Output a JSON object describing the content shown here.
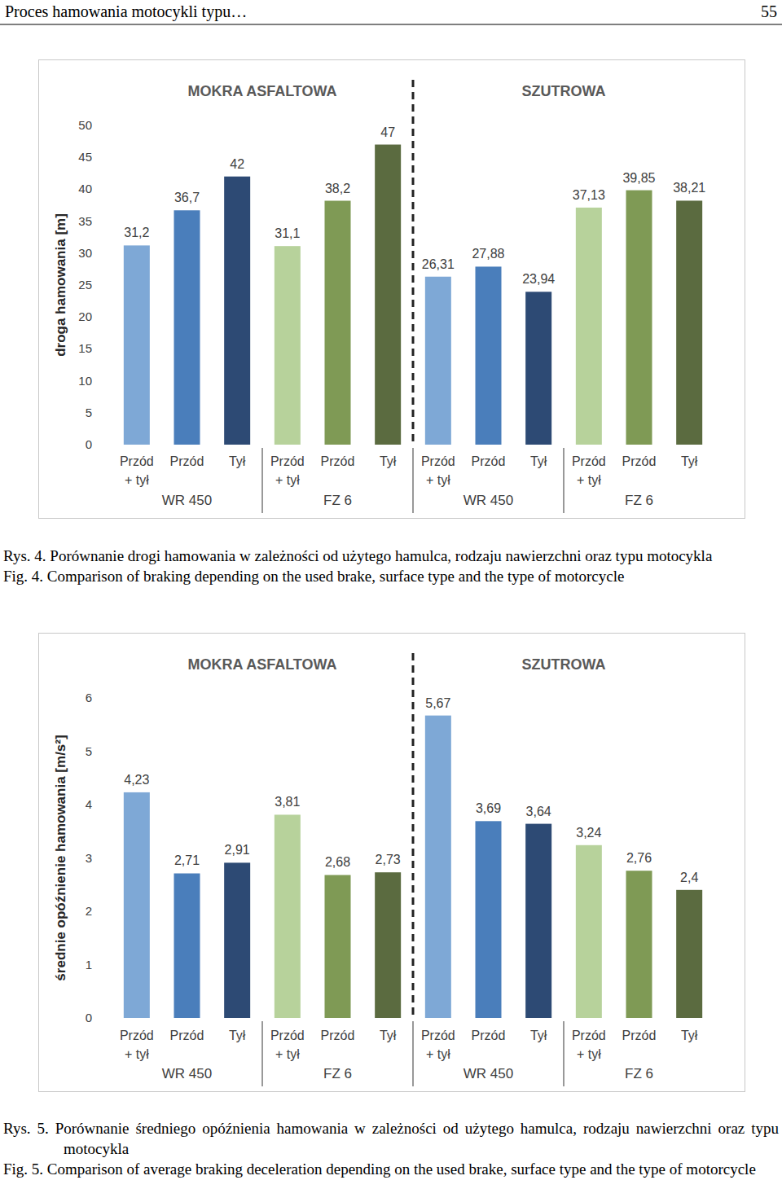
{
  "page": {
    "header": "Proces hamowania motocykli typu…",
    "page_number": "55",
    "captions": [
      {
        "pl_prefix": "Rys. 4.",
        "pl": "Porównanie drogi hamowania w zależności od użytego hamulca, rodzaju nawierzchni oraz typu motocykla",
        "en_prefix": "Fig. 4.",
        "en": "Comparison of braking depending on the used brake, surface type and the type of motorcycle"
      },
      {
        "pl_prefix": "Rys. 5.",
        "pl": "Porównanie średniego opóźnienia hamowania w zależności od użytego hamulca, rodzaju nawierzchni oraz typu motocykla",
        "en_prefix": "Fig. 5.",
        "en": "Comparison of average braking deceleration depending on the used brake, surface type and the type of motorcycle"
      }
    ]
  },
  "chart_data": [
    {
      "type": "bar",
      "y_label": "droga hamowania [m]",
      "section_labels": [
        "MOKRA ASFALTOWA",
        "SZUTROWA"
      ],
      "group_labels": [
        "WR 450",
        "FZ 6",
        "WR 450",
        "FZ 6"
      ],
      "categories": [
        "Przód + tył",
        "Przód",
        "Tył",
        "Przód + tył",
        "Przód",
        "Tył",
        "Przód + tył",
        "Przód",
        "Tył",
        "Przód + tył",
        "Przód",
        "Tył"
      ],
      "values": [
        31.2,
        36.7,
        42,
        31.1,
        38.2,
        47,
        26.31,
        27.88,
        23.94,
        37.13,
        39.85,
        38.21
      ],
      "value_labels": [
        "31,2",
        "36,7",
        "42",
        "31,1",
        "38,2",
        "47",
        "26,31",
        "27,88",
        "23,94",
        "37,13",
        "39,85",
        "38,21"
      ],
      "colors": [
        "#7ea8d6",
        "#4a7ebb",
        "#2d4a74",
        "#b7d29b",
        "#7f9a55",
        "#5b6b40",
        "#7ea8d6",
        "#4a7ebb",
        "#2d4a74",
        "#b7d29b",
        "#7f9a55",
        "#5b6b40"
      ],
      "ylim": [
        0,
        50
      ],
      "yticks": [
        0,
        5,
        10,
        15,
        20,
        25,
        30,
        35,
        40,
        45,
        50
      ],
      "grid": false,
      "data_labels": true
    },
    {
      "type": "bar",
      "y_label": "średnie opóźnienie hamowania [m/s²]",
      "section_labels": [
        "MOKRA ASFALTOWA",
        "SZUTROWA"
      ],
      "group_labels": [
        "WR 450",
        "FZ 6",
        "WR 450",
        "FZ 6"
      ],
      "categories": [
        "Przód + tył",
        "Przód",
        "Tył",
        "Przód + tył",
        "Przód",
        "Tył",
        "Przód + tył",
        "Przód",
        "Tył",
        "Przód + tył",
        "Przód",
        "Tył"
      ],
      "values": [
        4.23,
        2.71,
        2.91,
        3.81,
        2.68,
        2.73,
        5.67,
        3.69,
        3.64,
        3.24,
        2.76,
        2.4
      ],
      "value_labels": [
        "4,23",
        "2,71",
        "2,91",
        "3,81",
        "2,68",
        "2,73",
        "5,67",
        "3,69",
        "3,64",
        "3,24",
        "2,76",
        "2,4"
      ],
      "colors": [
        "#7ea8d6",
        "#4a7ebb",
        "#2d4a74",
        "#b7d29b",
        "#7f9a55",
        "#5b6b40",
        "#7ea8d6",
        "#4a7ebb",
        "#2d4a74",
        "#b7d29b",
        "#7f9a55",
        "#5b6b40"
      ],
      "ylim": [
        0,
        6
      ],
      "yticks": [
        0,
        1,
        2,
        3,
        4,
        5,
        6
      ],
      "grid": false,
      "data_labels": true
    }
  ]
}
